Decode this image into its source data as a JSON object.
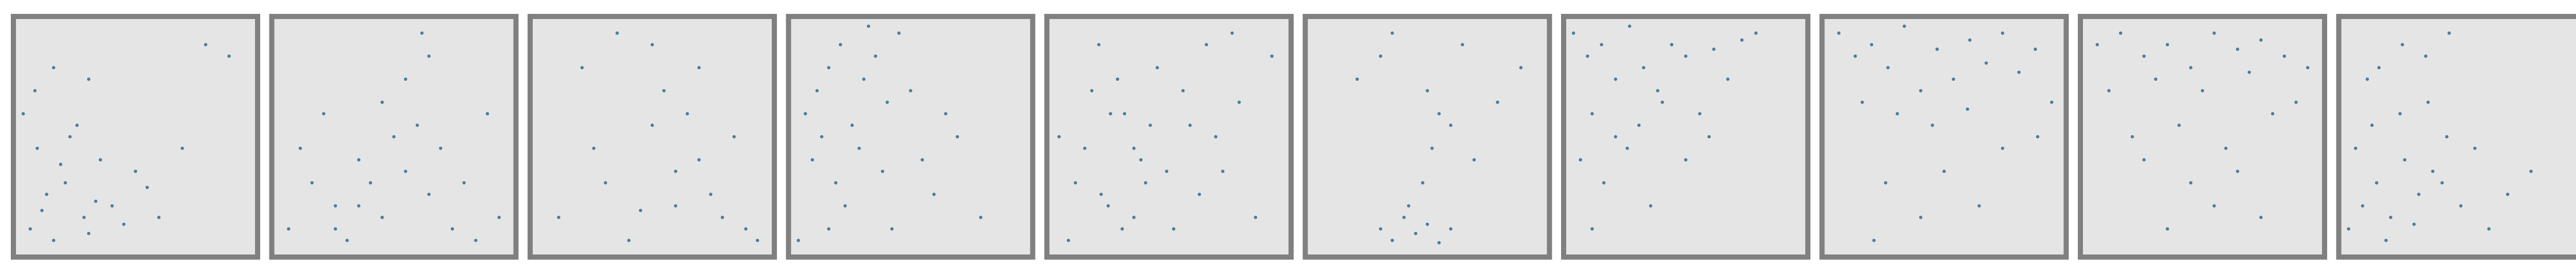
{
  "chart_data": [
    {
      "type": "scatter",
      "color": "#4c7c99",
      "xlim": [
        0,
        1
      ],
      "ylim": [
        0,
        1
      ],
      "x": [
        0.05,
        0.12,
        0.2,
        0.28,
        0.35,
        0.08,
        0.15,
        0.4,
        0.5,
        0.22,
        0.3,
        0.02,
        0.45,
        0.55,
        0.1,
        0.18,
        0.25,
        0.6,
        0.33,
        0.07,
        0.8,
        0.9,
        0.15,
        0.3,
        0.7
      ],
      "y": [
        0.1,
        0.25,
        0.3,
        0.15,
        0.4,
        0.45,
        0.05,
        0.2,
        0.35,
        0.5,
        0.08,
        0.6,
        0.12,
        0.28,
        0.18,
        0.38,
        0.55,
        0.15,
        0.22,
        0.7,
        0.9,
        0.85,
        0.8,
        0.75,
        0.45
      ]
    },
    {
      "type": "scatter",
      "color": "#4c7c99",
      "xlim": [
        0,
        1
      ],
      "ylim": [
        0,
        1
      ],
      "x": [
        0.05,
        0.15,
        0.25,
        0.35,
        0.45,
        0.55,
        0.65,
        0.75,
        0.85,
        0.95,
        0.1,
        0.3,
        0.5,
        0.7,
        0.2,
        0.4,
        0.6,
        0.8,
        0.55,
        0.65,
        0.45,
        0.35,
        0.25,
        0.62,
        0.9
      ],
      "y": [
        0.1,
        0.3,
        0.2,
        0.4,
        0.15,
        0.35,
        0.25,
        0.1,
        0.05,
        0.15,
        0.45,
        0.05,
        0.5,
        0.45,
        0.6,
        0.3,
        0.55,
        0.3,
        0.75,
        0.85,
        0.65,
        0.2,
        0.1,
        0.95,
        0.6
      ]
    },
    {
      "type": "scatter",
      "color": "#4c7c99",
      "xlim": [
        0,
        1
      ],
      "ylim": [
        0,
        1
      ],
      "x": [
        0.1,
        0.2,
        0.3,
        0.4,
        0.5,
        0.6,
        0.7,
        0.8,
        0.9,
        0.35,
        0.55,
        0.65,
        0.75,
        0.85,
        0.45,
        0.25,
        0.95,
        0.6,
        0.7,
        0.5
      ],
      "y": [
        0.15,
        0.8,
        0.3,
        0.05,
        0.55,
        0.2,
        0.4,
        0.15,
        0.1,
        0.95,
        0.7,
        0.6,
        0.25,
        0.5,
        0.18,
        0.45,
        0.05,
        0.35,
        0.8,
        0.9
      ]
    },
    {
      "type": "scatter",
      "color": "#4c7c99",
      "xlim": [
        0,
        1
      ],
      "ylim": [
        0,
        1
      ],
      "x": [
        0.05,
        0.1,
        0.15,
        0.2,
        0.25,
        0.3,
        0.35,
        0.4,
        0.45,
        0.08,
        0.12,
        0.18,
        0.22,
        0.28,
        0.32,
        0.38,
        0.5,
        0.6,
        0.7,
        0.8,
        0.02,
        0.42,
        0.55,
        0.65,
        0.15
      ],
      "y": [
        0.6,
        0.7,
        0.8,
        0.9,
        0.55,
        0.75,
        0.85,
        0.65,
        0.95,
        0.4,
        0.5,
        0.3,
        0.2,
        0.45,
        0.98,
        0.35,
        0.7,
        0.25,
        0.5,
        0.15,
        0.05,
        0.1,
        0.4,
        0.6,
        0.1
      ]
    },
    {
      "type": "scatter",
      "color": "#4c7c99",
      "xlim": [
        0,
        1
      ],
      "ylim": [
        0,
        1
      ],
      "x": [
        0.03,
        0.1,
        0.17,
        0.24,
        0.31,
        0.38,
        0.45,
        0.52,
        0.59,
        0.66,
        0.73,
        0.8,
        0.87,
        0.94,
        0.07,
        0.14,
        0.21,
        0.28,
        0.35,
        0.42,
        0.49,
        0.56,
        0.63,
        0.7,
        0.77,
        0.2,
        0.3,
        0.4,
        0.25,
        0.35
      ],
      "y": [
        0.5,
        0.3,
        0.7,
        0.2,
        0.6,
        0.4,
        0.8,
        0.1,
        0.55,
        0.9,
        0.35,
        0.65,
        0.15,
        0.85,
        0.05,
        0.45,
        0.25,
        0.75,
        0.15,
        0.55,
        0.35,
        0.7,
        0.25,
        0.5,
        0.95,
        0.9,
        0.1,
        0.3,
        0.6,
        0.45
      ]
    },
    {
      "type": "scatter",
      "color": "#4c7c99",
      "xlim": [
        0,
        1
      ],
      "ylim": [
        0,
        1
      ],
      "x": [
        0.3,
        0.35,
        0.4,
        0.45,
        0.5,
        0.55,
        0.6,
        0.42,
        0.48,
        0.52,
        0.2,
        0.3,
        0.5,
        0.6,
        0.7,
        0.8,
        0.9,
        0.35,
        0.65,
        0.55
      ],
      "y": [
        0.1,
        0.05,
        0.15,
        0.08,
        0.12,
        0.04,
        0.1,
        0.2,
        0.3,
        0.45,
        0.75,
        0.85,
        0.7,
        0.55,
        0.4,
        0.65,
        0.8,
        0.95,
        0.9,
        0.6
      ]
    },
    {
      "type": "scatter",
      "color": "#4c7c99",
      "xlim": [
        0,
        1
      ],
      "ylim": [
        0,
        1
      ],
      "x": [
        0.02,
        0.08,
        0.14,
        0.2,
        0.26,
        0.32,
        0.38,
        0.44,
        0.5,
        0.56,
        0.62,
        0.68,
        0.74,
        0.8,
        0.1,
        0.2,
        0.3,
        0.4,
        0.05,
        0.15,
        0.25,
        0.35,
        0.5,
        0.6,
        0.1
      ],
      "y": [
        0.95,
        0.85,
        0.9,
        0.75,
        0.98,
        0.8,
        0.7,
        0.9,
        0.85,
        0.6,
        0.88,
        0.75,
        0.92,
        0.95,
        0.6,
        0.5,
        0.55,
        0.65,
        0.4,
        0.3,
        0.45,
        0.2,
        0.4,
        0.5,
        0.1
      ]
    },
    {
      "type": "scatter",
      "color": "#4c7c99",
      "xlim": [
        0,
        1
      ],
      "ylim": [
        0,
        1
      ],
      "x": [
        0.05,
        0.12,
        0.19,
        0.26,
        0.33,
        0.4,
        0.47,
        0.54,
        0.61,
        0.68,
        0.75,
        0.82,
        0.89,
        0.96,
        0.15,
        0.3,
        0.45,
        0.6,
        0.75,
        0.9,
        0.25,
        0.5,
        0.4,
        0.65,
        0.2
      ],
      "y": [
        0.95,
        0.85,
        0.9,
        0.8,
        0.98,
        0.7,
        0.88,
        0.75,
        0.92,
        0.82,
        0.95,
        0.78,
        0.88,
        0.65,
        0.65,
        0.6,
        0.55,
        0.62,
        0.45,
        0.5,
        0.3,
        0.35,
        0.15,
        0.2,
        0.05
      ]
    },
    {
      "type": "scatter",
      "color": "#4c7c99",
      "xlim": [
        0,
        1
      ],
      "ylim": [
        0,
        1
      ],
      "x": [
        0.05,
        0.15,
        0.25,
        0.35,
        0.45,
        0.55,
        0.65,
        0.75,
        0.85,
        0.95,
        0.1,
        0.3,
        0.5,
        0.7,
        0.9,
        0.2,
        0.4,
        0.6,
        0.8,
        0.45,
        0.55,
        0.65,
        0.35,
        0.75,
        0.25
      ],
      "y": [
        0.9,
        0.95,
        0.85,
        0.9,
        0.8,
        0.95,
        0.88,
        0.92,
        0.85,
        0.8,
        0.7,
        0.75,
        0.7,
        0.78,
        0.65,
        0.5,
        0.55,
        0.45,
        0.6,
        0.3,
        0.2,
        0.35,
        0.1,
        0.15,
        0.4
      ]
    },
    {
      "type": "scatter",
      "color": "#4c7c99",
      "xlim": [
        0,
        1
      ],
      "ylim": [
        0,
        1
      ],
      "x": [
        0.02,
        0.08,
        0.14,
        0.2,
        0.26,
        0.32,
        0.38,
        0.44,
        0.5,
        0.56,
        0.62,
        0.05,
        0.12,
        0.18,
        0.24,
        0.3,
        0.36,
        0.42,
        0.7,
        0.8,
        0.15,
        0.25,
        0.1,
        0.35,
        0.45
      ],
      "y": [
        0.1,
        0.2,
        0.3,
        0.15,
        0.4,
        0.25,
        0.35,
        0.5,
        0.2,
        0.45,
        0.1,
        0.45,
        0.55,
        0.05,
        0.6,
        0.12,
        0.65,
        0.3,
        0.25,
        0.35,
        0.8,
        0.9,
        0.75,
        0.85,
        0.95
      ]
    }
  ]
}
